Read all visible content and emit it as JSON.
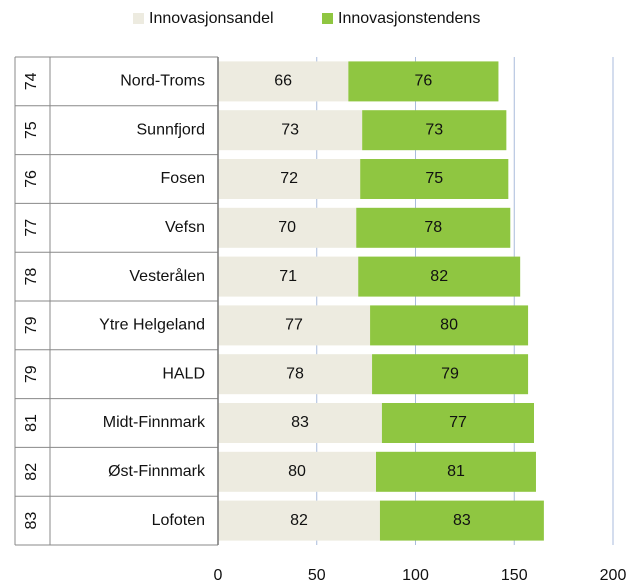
{
  "chart_data": {
    "type": "stacked-bar-horizontal",
    "categories": [
      "Nord-Troms",
      "Sunnfjord",
      "Fosen",
      "Vefsn",
      "Vesterålen",
      "Ytre Helgeland",
      "HALD",
      "Midt-Finnmark",
      "Øst-Finnmark",
      "Lofoten"
    ],
    "ranks": [
      74,
      75,
      76,
      77,
      78,
      79,
      79,
      81,
      82,
      83
    ],
    "series": [
      {
        "name": "Innovasjonsandel",
        "color": "#edebe0",
        "values": [
          66,
          73,
          72,
          70,
          71,
          77,
          78,
          83,
          80,
          82
        ]
      },
      {
        "name": "Innovasjonstendens",
        "color": "#8fc641",
        "values": [
          76,
          73,
          75,
          78,
          82,
          80,
          79,
          77,
          81,
          83
        ]
      }
    ],
    "xlim": [
      0,
      200
    ],
    "xticks": [
      0,
      50,
      100,
      150,
      200
    ],
    "grid": true,
    "legend": "top"
  }
}
